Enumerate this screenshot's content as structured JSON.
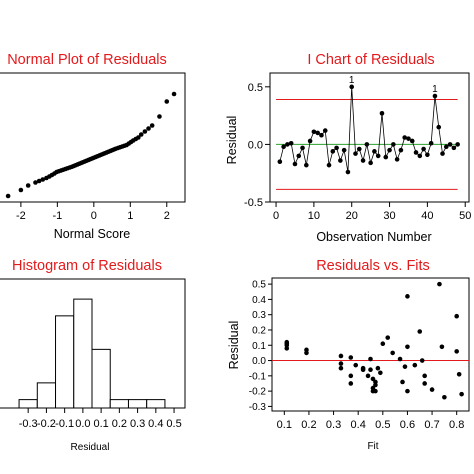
{
  "chart_data": [
    {
      "type": "scatter",
      "title": "Normal Plot of Residuals",
      "xlabel": "Normal Score",
      "ylabel": "",
      "xlim": [
        -2.6,
        2.5
      ],
      "ylim": [
        -0.3,
        0.56
      ],
      "x_ticks": [
        "-2",
        "-1",
        "0",
        "1",
        "2"
      ],
      "x": [
        -2.35,
        -2.0,
        -1.8,
        -1.6,
        -1.5,
        -1.4,
        -1.3,
        -1.22,
        -1.15,
        -1.08,
        -1.02,
        -0.96,
        -0.9,
        -0.84,
        -0.78,
        -0.72,
        -0.66,
        -0.6,
        -0.55,
        -0.5,
        -0.45,
        -0.4,
        -0.35,
        -0.3,
        -0.25,
        -0.2,
        -0.15,
        -0.1,
        -0.05,
        0.0,
        0.05,
        0.1,
        0.15,
        0.2,
        0.25,
        0.3,
        0.35,
        0.4,
        0.45,
        0.5,
        0.55,
        0.6,
        0.66,
        0.72,
        0.78,
        0.84,
        0.9,
        0.96,
        1.02,
        1.08,
        1.15,
        1.22,
        1.3,
        1.4,
        1.5,
        1.6,
        1.8,
        2.0,
        2.2
      ],
      "y": [
        -0.26,
        -0.22,
        -0.19,
        -0.17,
        -0.16,
        -0.15,
        -0.14,
        -0.13,
        -0.12,
        -0.11,
        -0.1,
        -0.095,
        -0.09,
        -0.085,
        -0.08,
        -0.075,
        -0.07,
        -0.065,
        -0.06,
        -0.055,
        -0.05,
        -0.045,
        -0.04,
        -0.035,
        -0.03,
        -0.025,
        -0.02,
        -0.015,
        -0.01,
        -0.005,
        0.0,
        0.005,
        0.01,
        0.015,
        0.02,
        0.025,
        0.03,
        0.035,
        0.04,
        0.045,
        0.05,
        0.055,
        0.06,
        0.065,
        0.07,
        0.075,
        0.08,
        0.09,
        0.1,
        0.11,
        0.12,
        0.13,
        0.15,
        0.17,
        0.19,
        0.21,
        0.27,
        0.37,
        0.42
      ]
    },
    {
      "type": "line",
      "title": "I Chart of Residuals",
      "xlabel": "Observation Number",
      "ylabel": "Residual",
      "xlim": [
        -1.6,
        51
      ],
      "ylim": [
        -0.5,
        0.62
      ],
      "x_ticks": [
        "0",
        "10",
        "20",
        "30",
        "40",
        "50"
      ],
      "y_ticks": [
        "0.5",
        "0.0",
        "-0.5"
      ],
      "center_line": 0.0,
      "upper_limit": 0.39,
      "lower_limit": -0.39,
      "flag_label": "1",
      "flagged_points": [
        20,
        42
      ],
      "x": [
        1,
        2,
        3,
        4,
        5,
        6,
        7,
        8,
        9,
        10,
        11,
        12,
        13,
        14,
        15,
        16,
        17,
        18,
        19,
        20,
        21,
        22,
        23,
        24,
        25,
        26,
        27,
        28,
        29,
        30,
        31,
        32,
        33,
        34,
        35,
        36,
        37,
        38,
        39,
        40,
        41,
        42,
        43,
        44,
        45,
        46,
        47,
        48
      ],
      "y": [
        -0.15,
        -0.02,
        0.0,
        0.01,
        -0.17,
        -0.1,
        -0.03,
        -0.18,
        0.03,
        0.11,
        0.1,
        0.08,
        0.12,
        -0.18,
        -0.06,
        -0.03,
        -0.14,
        -0.05,
        -0.24,
        0.5,
        -0.08,
        -0.04,
        -0.14,
        0.0,
        -0.16,
        -0.06,
        -0.1,
        0.27,
        -0.11,
        -0.05,
        0.0,
        -0.13,
        -0.05,
        0.06,
        0.05,
        0.03,
        -0.07,
        -0.1,
        -0.04,
        -0.09,
        0.01,
        0.42,
        0.15,
        -0.08,
        -0.02,
        0.0,
        -0.03,
        0.0
      ]
    },
    {
      "type": "bar",
      "title": "Histogram of Residuals",
      "xlabel": "Residual",
      "ylabel": "",
      "bin_width": 0.1,
      "x_ticks": [
        "-0.3",
        "-0.2",
        "-0.1",
        "0.0",
        "0.1",
        "0.2",
        "0.3",
        "0.4",
        "0.5"
      ],
      "categories": [
        "-0.3",
        "-0.2",
        "-0.1",
        "0.0",
        "0.1",
        "0.2",
        "0.3",
        "0.4",
        "0.5"
      ],
      "values": [
        1,
        3,
        11,
        13,
        7,
        1,
        1,
        1,
        0
      ],
      "ylim": [
        0,
        15.4
      ]
    },
    {
      "type": "scatter",
      "title": "Residuals vs. Fits",
      "xlabel": "Fit",
      "ylabel": "Residual",
      "xlim": [
        0.05,
        0.85
      ],
      "ylim": [
        -0.33,
        0.54
      ],
      "reference_line": 0.0,
      "x_ticks": [
        "0.1",
        "0.2",
        "0.3",
        "0.4",
        "0.5",
        "0.6",
        "0.7",
        "0.8"
      ],
      "y_ticks": [
        "0.5",
        "0.4",
        "0.3",
        "0.2",
        "0.1",
        "0.0",
        "-0.1",
        "-0.2",
        "-0.3"
      ],
      "x": [
        0.11,
        0.11,
        0.11,
        0.11,
        0.19,
        0.19,
        0.33,
        0.33,
        0.33,
        0.37,
        0.37,
        0.37,
        0.39,
        0.42,
        0.42,
        0.44,
        0.45,
        0.45,
        0.46,
        0.46,
        0.46,
        0.47,
        0.47,
        0.47,
        0.48,
        0.49,
        0.5,
        0.52,
        0.54,
        0.57,
        0.58,
        0.59,
        0.6,
        0.6,
        0.6,
        0.63,
        0.65,
        0.66,
        0.67,
        0.67,
        0.7,
        0.73,
        0.74,
        0.75,
        0.8,
        0.8,
        0.81,
        0.82
      ],
      "y": [
        0.12,
        0.11,
        0.1,
        0.08,
        0.07,
        0.05,
        0.03,
        -0.02,
        -0.05,
        0.02,
        -0.1,
        -0.15,
        -0.03,
        -0.05,
        -0.06,
        -0.1,
        0.01,
        -0.06,
        -0.12,
        -0.18,
        -0.2,
        -0.14,
        -0.16,
        -0.2,
        -0.05,
        -0.08,
        0.11,
        0.15,
        0.05,
        0.01,
        -0.14,
        -0.04,
        0.42,
        0.09,
        -0.2,
        -0.03,
        0.19,
        0.0,
        -0.1,
        -0.15,
        -0.19,
        0.5,
        0.09,
        -0.24,
        0.29,
        0.06,
        -0.09,
        -0.22
      ]
    }
  ]
}
